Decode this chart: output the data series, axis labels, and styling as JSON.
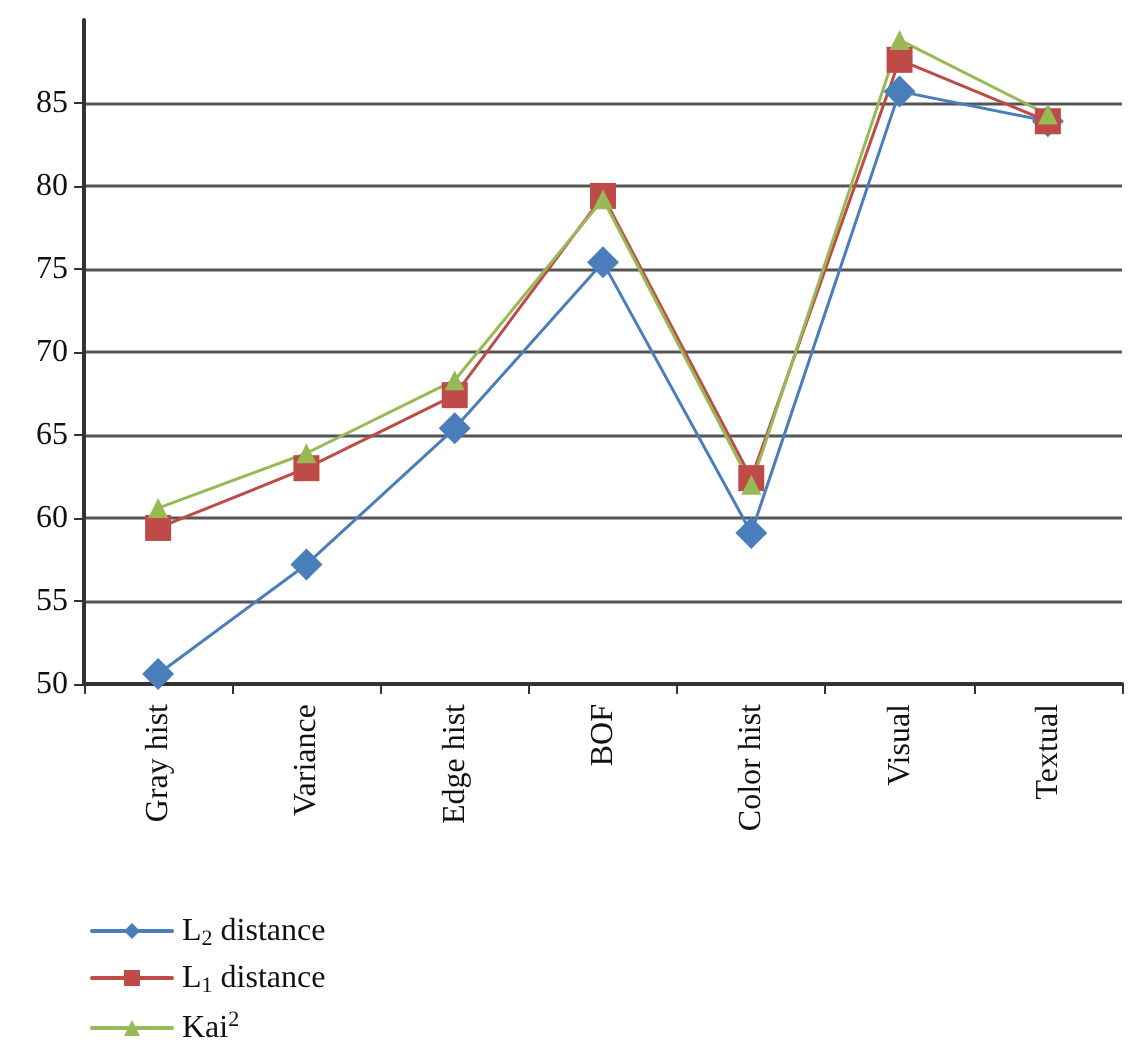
{
  "chart_data": {
    "type": "line",
    "categories": [
      "Gray hist",
      "Variance",
      "Edge hist",
      "BOF",
      "Color hist",
      "Visual",
      "Textual"
    ],
    "series": [
      {
        "name": "L$_{2}$ distance",
        "color": "#4a7ebb",
        "marker": "diamond",
        "values": [
          50.6,
          57.2,
          65.4,
          75.4,
          59.1,
          85.7,
          83.9
        ]
      },
      {
        "name": "L$_{1}$ distance",
        "color": "#be4b48",
        "marker": "square",
        "values": [
          59.4,
          63.0,
          67.4,
          79.4,
          62.4,
          87.6,
          83.9
        ]
      },
      {
        "name": "Kai$^{2}$",
        "color": "#98b954",
        "marker": "triangle",
        "values": [
          60.6,
          63.9,
          68.3,
          79.2,
          62.0,
          88.8,
          84.3
        ]
      }
    ],
    "ylim": [
      50,
      90
    ],
    "yticks": [
      50,
      55,
      60,
      65,
      70,
      75,
      80,
      85
    ],
    "grid": "y",
    "legend": "bottom left"
  }
}
